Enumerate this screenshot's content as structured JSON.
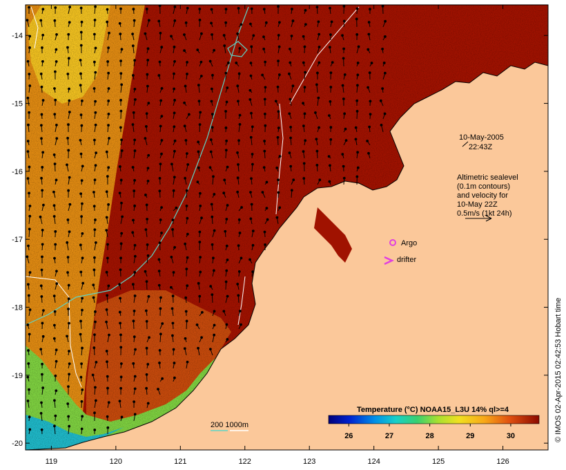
{
  "map": {
    "lon_range": [
      118.6,
      126.7
    ],
    "lat_range": [
      -20.1,
      -13.55
    ],
    "x_ticks": [
      119,
      120,
      121,
      122,
      123,
      124,
      125,
      126
    ],
    "y_ticks": [
      -14,
      -15,
      -16,
      -17,
      -18,
      -19,
      -20
    ],
    "x_tick_labels": [
      "119",
      "120",
      "121",
      "122",
      "123",
      "124",
      "125",
      "126"
    ],
    "y_tick_labels": [
      "-14",
      "-15",
      "-16",
      "-17",
      "-18",
      "-19",
      "-20"
    ]
  },
  "annotations": {
    "date": "10-May-2005",
    "time": "22:43Z",
    "altimetry_lines": [
      "Altimetric sealevel",
      "(0.1m contours)",
      "and velocity for",
      "10-May 22Z",
      "0.5m/s (1kt 24h)"
    ],
    "argo_label": "Argo",
    "drifter_label": "drifter",
    "depth_legend": "200  1000m"
  },
  "colorbar": {
    "title": "Temperature (°C) NOAA15_L3U 14% ql>=4",
    "ticks": [
      26,
      27,
      28,
      29,
      30
    ],
    "tick_labels": [
      "26",
      "27",
      "28",
      "29",
      "30"
    ],
    "range": [
      25.5,
      30.7
    ]
  },
  "credit": "© IMOS 02-Apr-2015 02:42:53 Hobart time",
  "colors": {
    "land": "#fbc89a",
    "sst_dark": "#a01200",
    "sst_mid": "#c64a0c",
    "sst_warm": "#e08a12",
    "sst_cool": "#f0c020",
    "sst_green": "#7ed040",
    "sst_cyan": "#1fb8c8",
    "contour_200": "#5dd6c8",
    "contour_1000": "#ffffff",
    "argo": "#e040e0",
    "drifter": "#e040e0"
  }
}
